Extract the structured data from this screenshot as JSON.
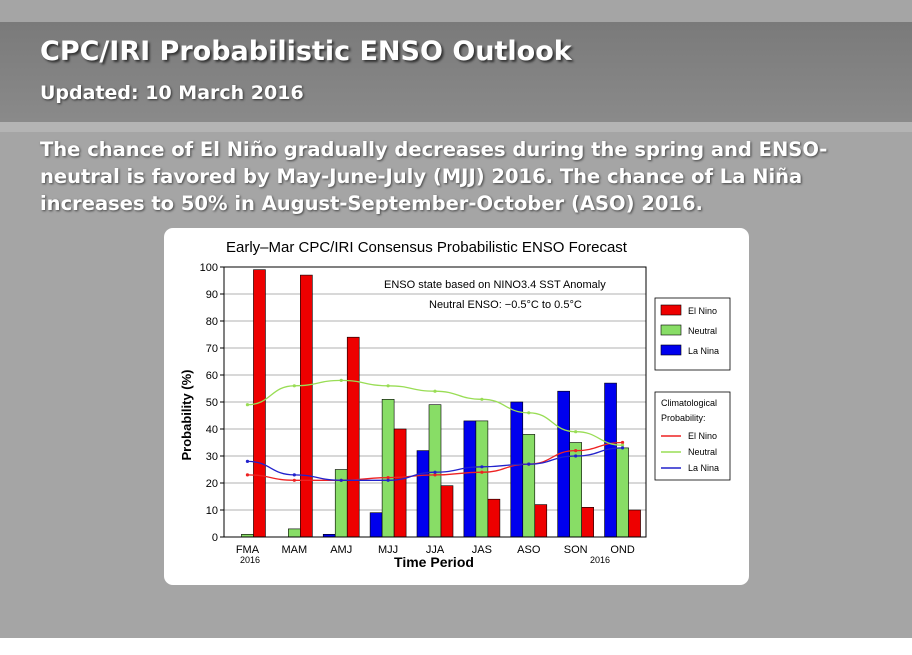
{
  "header": {
    "title": "CPC/IRI Probabilistic ENSO Outlook",
    "updated": "Updated: 10 March 2016"
  },
  "summary": {
    "line1": "The chance of El Niño gradually decreases during the spring and ENSO-",
    "line2": "neutral is favored by May-June-July (MJJ) 2016.  The chance of La Niña",
    "line3": "increases to 50% in August-September-October (ASO) 2016."
  },
  "chart_data": {
    "type": "bar",
    "title": "Early–Mar CPC/IRI Consensus Probabilistic ENSO Forecast",
    "xlabel": "Time Period",
    "ylabel": "Probability (%)",
    "ylim": [
      0,
      100
    ],
    "yticks": [
      0,
      10,
      20,
      30,
      40,
      50,
      60,
      70,
      80,
      90,
      100
    ],
    "categories": [
      "FMA",
      "MAM",
      "AMJ",
      "MJJ",
      "JJA",
      "JAS",
      "ASO",
      "SON",
      "OND"
    ],
    "year_start": "2016",
    "year_end": "2016",
    "annotation1": "ENSO state based on NINO3.4 SST Anomaly",
    "annotation2": "Neutral ENSO: −0.5°C to 0.5°C",
    "series": [
      {
        "name": "La Nina",
        "color": "#0000ee",
        "values": [
          0,
          0,
          1,
          9,
          32,
          43,
          50,
          54,
          57
        ]
      },
      {
        "name": "Neutral",
        "color": "#88dd66",
        "values": [
          1,
          3,
          25,
          51,
          49,
          43,
          38,
          35,
          33
        ]
      },
      {
        "name": "El Nino",
        "color": "#ee0000",
        "values": [
          99,
          97,
          74,
          40,
          19,
          14,
          12,
          11,
          10
        ]
      }
    ],
    "climatology_title": "Climatological",
    "climatology_title2": "Probability:",
    "climatology": [
      {
        "name": "El Nino",
        "color": "#ee2222",
        "values": [
          23,
          21,
          21,
          22,
          23,
          24,
          27,
          32,
          35
        ]
      },
      {
        "name": "Neutral",
        "color": "#99dd55",
        "values": [
          49,
          56,
          58,
          56,
          54,
          51,
          46,
          39,
          34
        ]
      },
      {
        "name": "La Nina",
        "color": "#2222cc",
        "values": [
          28,
          23,
          21,
          21,
          24,
          26,
          27,
          30,
          33
        ]
      }
    ],
    "legend_placement": "right",
    "grid": true
  }
}
